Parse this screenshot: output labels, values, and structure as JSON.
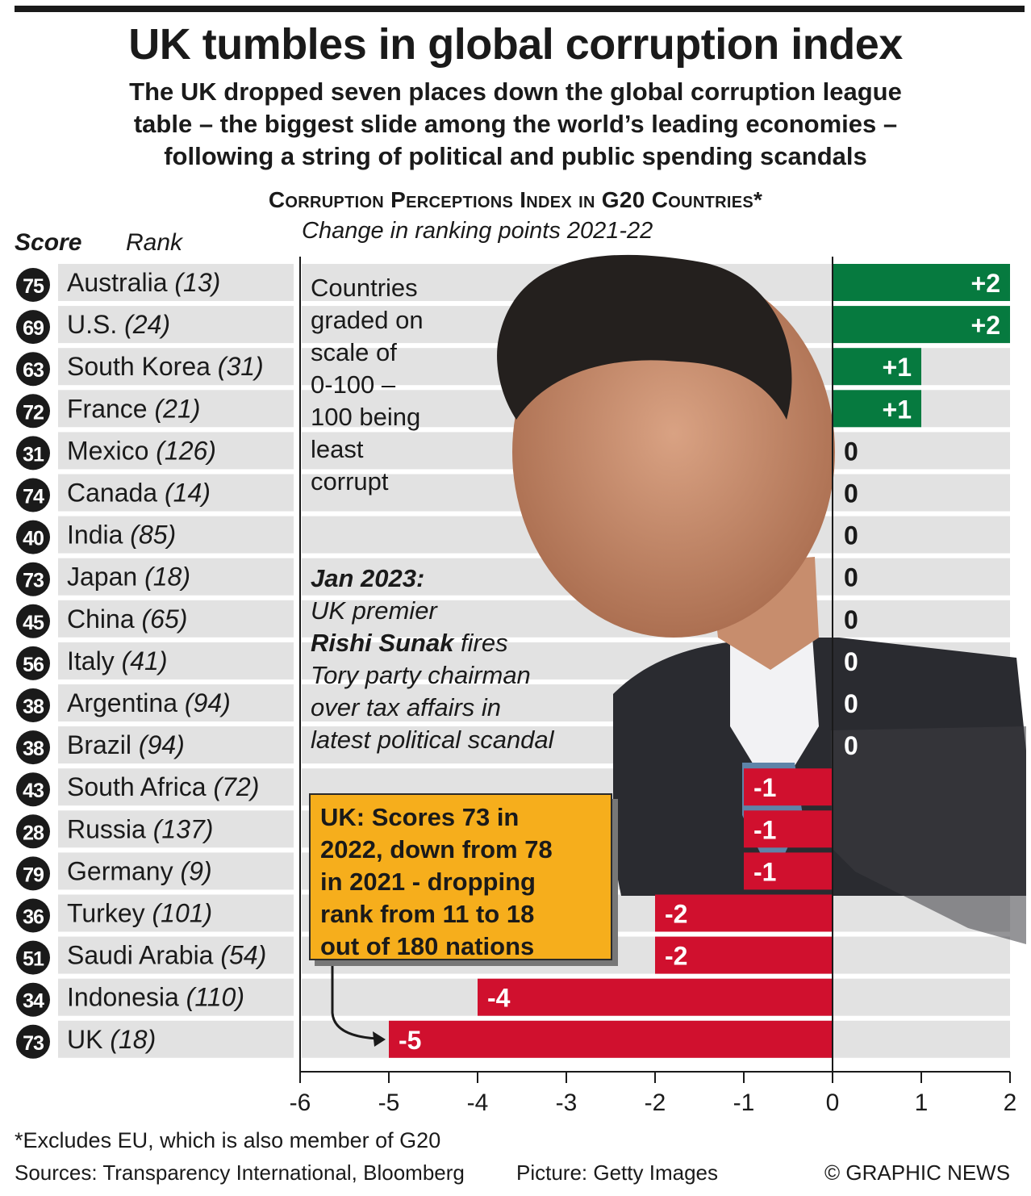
{
  "title": "UK tumbles in global corruption index",
  "subtitle_lines": [
    "The UK dropped seven places down the global corruption league",
    "table – the biggest slide among the world’s leading economies –",
    "following a string of political and public spending scandals"
  ],
  "header": {
    "score": "Score",
    "rank": "Rank"
  },
  "note_lines": [
    "Countries",
    "graded on",
    "scale of",
    "0-100 –",
    "100 being",
    "least",
    "corrupt"
  ],
  "quote": {
    "l1": "Jan 2023:",
    "l2": "UK premier",
    "l3b": "Rishi Sunak",
    "l3": " fires",
    "l4": "Tory party chairman",
    "l5": "over tax affairs in",
    "l6": "latest political scandal"
  },
  "uk_box_lines": [
    "UK: Scores 73 in",
    "2022, down from 78",
    "in 2021 - dropping",
    "rank from 11 to 18",
    "out of 180 nations"
  ],
  "footnote": "*Excludes EU, which is also member of G20",
  "sources": "Sources: Transparency International, Bloomberg",
  "picture": "Picture: Getty Images",
  "credit": "© GRAPHIC NEWS",
  "colors": {
    "positive": "#067a3f",
    "negative": "#d0102e",
    "row_bg": "#e2e2e2",
    "badge": "#1a1a1a",
    "box": "#f6ae1c"
  },
  "chart_data": {
    "type": "bar",
    "orientation": "horizontal",
    "title": "Corruption Perceptions Index in G20 Countries*",
    "subtitle": "Change in ranking points 2021-22",
    "xlim": [
      -6,
      2
    ],
    "xticks": [
      -6,
      -5,
      -4,
      -3,
      -2,
      -1,
      0,
      1,
      2
    ],
    "categories": [
      "Australia",
      "U.S.",
      "South Korea",
      "France",
      "Mexico",
      "Canada",
      "India",
      "Japan",
      "China",
      "Italy",
      "Argentina",
      "Brazil",
      "South Africa",
      "Russia",
      "Germany",
      "Turkey",
      "Saudi Arabia",
      "Indonesia",
      "UK"
    ],
    "ranks": [
      13,
      24,
      31,
      21,
      126,
      14,
      85,
      18,
      65,
      41,
      94,
      94,
      72,
      137,
      9,
      101,
      54,
      110,
      18
    ],
    "scores": [
      75,
      69,
      63,
      72,
      31,
      74,
      40,
      73,
      45,
      56,
      38,
      38,
      43,
      28,
      79,
      36,
      51,
      34,
      73
    ],
    "values": [
      2,
      2,
      1,
      1,
      0,
      0,
      0,
      0,
      0,
      0,
      0,
      0,
      -1,
      -1,
      -1,
      -2,
      -2,
      -4,
      -5
    ],
    "value_labels": [
      "+2",
      "+2",
      "+1",
      "+1",
      "0",
      "0",
      "0",
      "0",
      "0",
      "0",
      "0",
      "0",
      "-1",
      "-1",
      "-1",
      "-2",
      "-2",
      "-4",
      "-5"
    ]
  }
}
